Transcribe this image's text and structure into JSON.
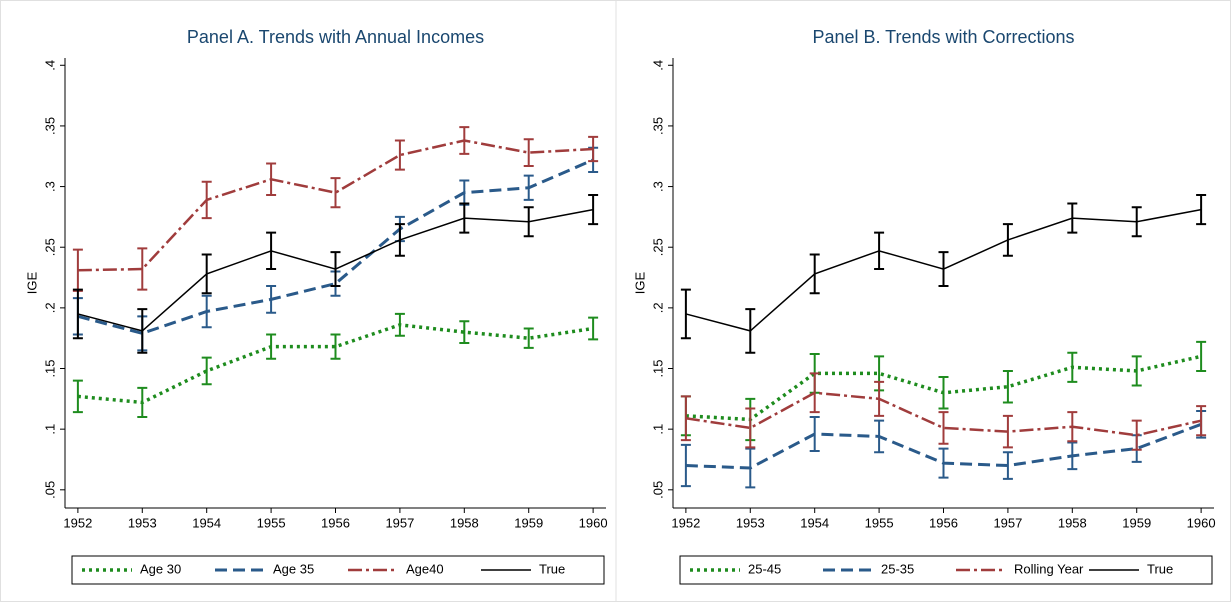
{
  "chart_data": [
    {
      "type": "line",
      "title": "Panel A. Trends with Annual Incomes",
      "y_label": "IGE",
      "x": [
        1952,
        1953,
        1954,
        1955,
        1956,
        1957,
        1958,
        1959,
        1960
      ],
      "xlim": [
        1951.8,
        1960.2
      ],
      "xticks": [
        1952,
        1953,
        1954,
        1955,
        1956,
        1957,
        1958,
        1959,
        1960
      ],
      "ylim": [
        0.035,
        0.406
      ],
      "yticks": [
        {
          "value": 0.05,
          "label": ".05"
        },
        {
          "value": 0.1,
          "label": ".1"
        },
        {
          "value": 0.15,
          "label": ".15"
        },
        {
          "value": 0.2,
          "label": ".2"
        },
        {
          "value": 0.25,
          "label": ".25"
        },
        {
          "value": 0.3,
          "label": ".3"
        },
        {
          "value": 0.35,
          "label": ".35"
        },
        {
          "value": 0.4,
          "label": ".4"
        }
      ],
      "legend": "bottom",
      "series": [
        {
          "name": "Age 30",
          "color": "#1e8c1e",
          "dash": "dotted",
          "values": [
            0.127,
            0.122,
            0.148,
            0.168,
            0.168,
            0.186,
            0.18,
            0.175,
            0.183
          ],
          "errors": [
            0.013,
            0.012,
            0.011,
            0.01,
            0.01,
            0.009,
            0.009,
            0.008,
            0.009
          ]
        },
        {
          "name": "Age 35",
          "color": "#2a5a8a",
          "dash": "dashed",
          "values": [
            0.193,
            0.179,
            0.197,
            0.207,
            0.22,
            0.265,
            0.295,
            0.299,
            0.322
          ],
          "errors": [
            0.015,
            0.014,
            0.013,
            0.011,
            0.01,
            0.01,
            0.01,
            0.01,
            0.01
          ]
        },
        {
          "name": "Age40",
          "color": "#a03c3c",
          "dash": "dashdot",
          "values": [
            0.231,
            0.232,
            0.289,
            0.306,
            0.295,
            0.326,
            0.338,
            0.328,
            0.331
          ],
          "errors": [
            0.017,
            0.017,
            0.015,
            0.013,
            0.012,
            0.012,
            0.011,
            0.011,
            0.01
          ]
        },
        {
          "name": "True",
          "color": "#000000",
          "dash": "solid",
          "values": [
            0.195,
            0.181,
            0.228,
            0.247,
            0.232,
            0.256,
            0.274,
            0.271,
            0.281
          ],
          "errors": [
            0.02,
            0.018,
            0.016,
            0.015,
            0.014,
            0.013,
            0.012,
            0.012,
            0.012
          ]
        }
      ]
    },
    {
      "type": "line",
      "title": "Panel B. Trends with Corrections",
      "y_label": "IGE",
      "x": [
        1952,
        1953,
        1954,
        1955,
        1956,
        1957,
        1958,
        1959,
        1960
      ],
      "xlim": [
        1951.8,
        1960.2
      ],
      "xticks": [
        1952,
        1953,
        1954,
        1955,
        1956,
        1957,
        1958,
        1959,
        1960
      ],
      "ylim": [
        0.035,
        0.406
      ],
      "yticks": [
        {
          "value": 0.05,
          "label": ".05"
        },
        {
          "value": 0.1,
          "label": ".1"
        },
        {
          "value": 0.15,
          "label": ".15"
        },
        {
          "value": 0.2,
          "label": ".2"
        },
        {
          "value": 0.25,
          "label": ".25"
        },
        {
          "value": 0.3,
          "label": ".3"
        },
        {
          "value": 0.35,
          "label": ".35"
        },
        {
          "value": 0.4,
          "label": ".4"
        }
      ],
      "legend": "bottom",
      "series": [
        {
          "name": "25-45",
          "color": "#1e8c1e",
          "dash": "dotted",
          "values": [
            0.111,
            0.108,
            0.146,
            0.146,
            0.13,
            0.135,
            0.151,
            0.148,
            0.16
          ],
          "errors": [
            0.016,
            0.017,
            0.016,
            0.014,
            0.013,
            0.013,
            0.012,
            0.012,
            0.012
          ]
        },
        {
          "name": "25-35",
          "color": "#2a5a8a",
          "dash": "dashed",
          "values": [
            0.07,
            0.068,
            0.096,
            0.094,
            0.072,
            0.07,
            0.078,
            0.084,
            0.104
          ],
          "errors": [
            0.017,
            0.016,
            0.014,
            0.013,
            0.012,
            0.011,
            0.011,
            0.011,
            0.011
          ]
        },
        {
          "name": "Rolling Year",
          "color": "#a03c3c",
          "dash": "dashdot",
          "values": [
            0.109,
            0.101,
            0.13,
            0.125,
            0.101,
            0.098,
            0.102,
            0.095,
            0.107
          ],
          "errors": [
            0.018,
            0.016,
            0.016,
            0.014,
            0.013,
            0.013,
            0.012,
            0.012,
            0.012
          ]
        },
        {
          "name": "True",
          "color": "#000000",
          "dash": "solid",
          "values": [
            0.195,
            0.181,
            0.228,
            0.247,
            0.232,
            0.256,
            0.274,
            0.271,
            0.281
          ],
          "errors": [
            0.02,
            0.018,
            0.016,
            0.015,
            0.014,
            0.013,
            0.012,
            0.012,
            0.012
          ]
        }
      ]
    }
  ]
}
